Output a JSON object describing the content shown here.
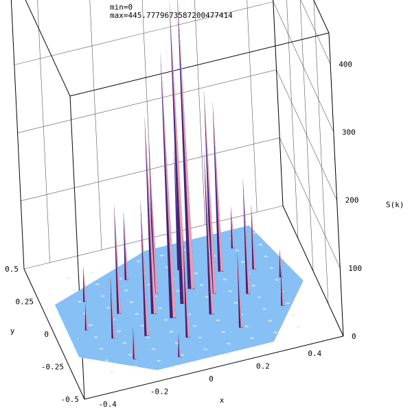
{
  "header": {
    "min_text": "min=0",
    "max_text": "max=445.7779673587200477414"
  },
  "chart_data": {
    "type": "surface3d",
    "title": "",
    "xlabel": "x",
    "ylabel": "y",
    "zlabel": "S(k)",
    "xlim": [
      -0.5,
      0.5
    ],
    "ylim": [
      -0.5,
      0.5
    ],
    "zlim": [
      0,
      445.77796735872005
    ],
    "x_ticks": [
      "-0.4",
      "-0.2",
      "0",
      "0.2",
      "0.4"
    ],
    "y_ticks": [
      "-0.5",
      "-0.25",
      "0",
      "0.25",
      "0.5"
    ],
    "z_ticks": [
      "0",
      "100",
      "200",
      "300",
      "400"
    ],
    "grid": true,
    "colors": {
      "base": "#86c0f5",
      "peak": "#ef9ab4",
      "peak_shadow": "#3a2a7a"
    },
    "peaks": [
      {
        "x": 0.0,
        "y": 0.0,
        "z": 445.8
      },
      {
        "x": 0.05,
        "y": 0.09,
        "z": 440.0
      },
      {
        "x": -0.06,
        "y": -0.08,
        "z": 390.0
      },
      {
        "x": 0.12,
        "y": 0.02,
        "z": 300.0
      },
      {
        "x": -0.12,
        "y": -0.02,
        "z": 290.0
      },
      {
        "x": 0.18,
        "y": 0.16,
        "z": 250.0
      },
      {
        "x": -0.18,
        "y": -0.16,
        "z": 200.0
      },
      {
        "x": 0.08,
        "y": -0.12,
        "z": 240.0
      },
      {
        "x": -0.08,
        "y": 0.12,
        "z": 220.0
      },
      {
        "x": 0.24,
        "y": -0.04,
        "z": 170.0
      },
      {
        "x": -0.24,
        "y": 0.04,
        "z": 160.0
      },
      {
        "x": 0.04,
        "y": 0.24,
        "z": 180.0
      },
      {
        "x": -0.04,
        "y": -0.24,
        "z": 150.0
      },
      {
        "x": 0.3,
        "y": 0.12,
        "z": 95.0
      },
      {
        "x": -0.3,
        "y": -0.12,
        "z": 90.0
      },
      {
        "x": 0.16,
        "y": -0.26,
        "z": 110.0
      },
      {
        "x": -0.16,
        "y": 0.26,
        "z": 100.0
      },
      {
        "x": 0.34,
        "y": -0.18,
        "z": 55.0
      },
      {
        "x": -0.34,
        "y": 0.18,
        "z": 50.0
      },
      {
        "x": 0.26,
        "y": 0.3,
        "z": 60.0
      },
      {
        "x": -0.26,
        "y": -0.3,
        "z": 45.0
      },
      {
        "x": 0.38,
        "y": 0.02,
        "z": 40.0
      },
      {
        "x": -0.38,
        "y": -0.02,
        "z": 38.0
      },
      {
        "x": 0.1,
        "y": 0.36,
        "z": 35.0
      },
      {
        "x": -0.1,
        "y": -0.36,
        "z": 32.0
      }
    ]
  }
}
